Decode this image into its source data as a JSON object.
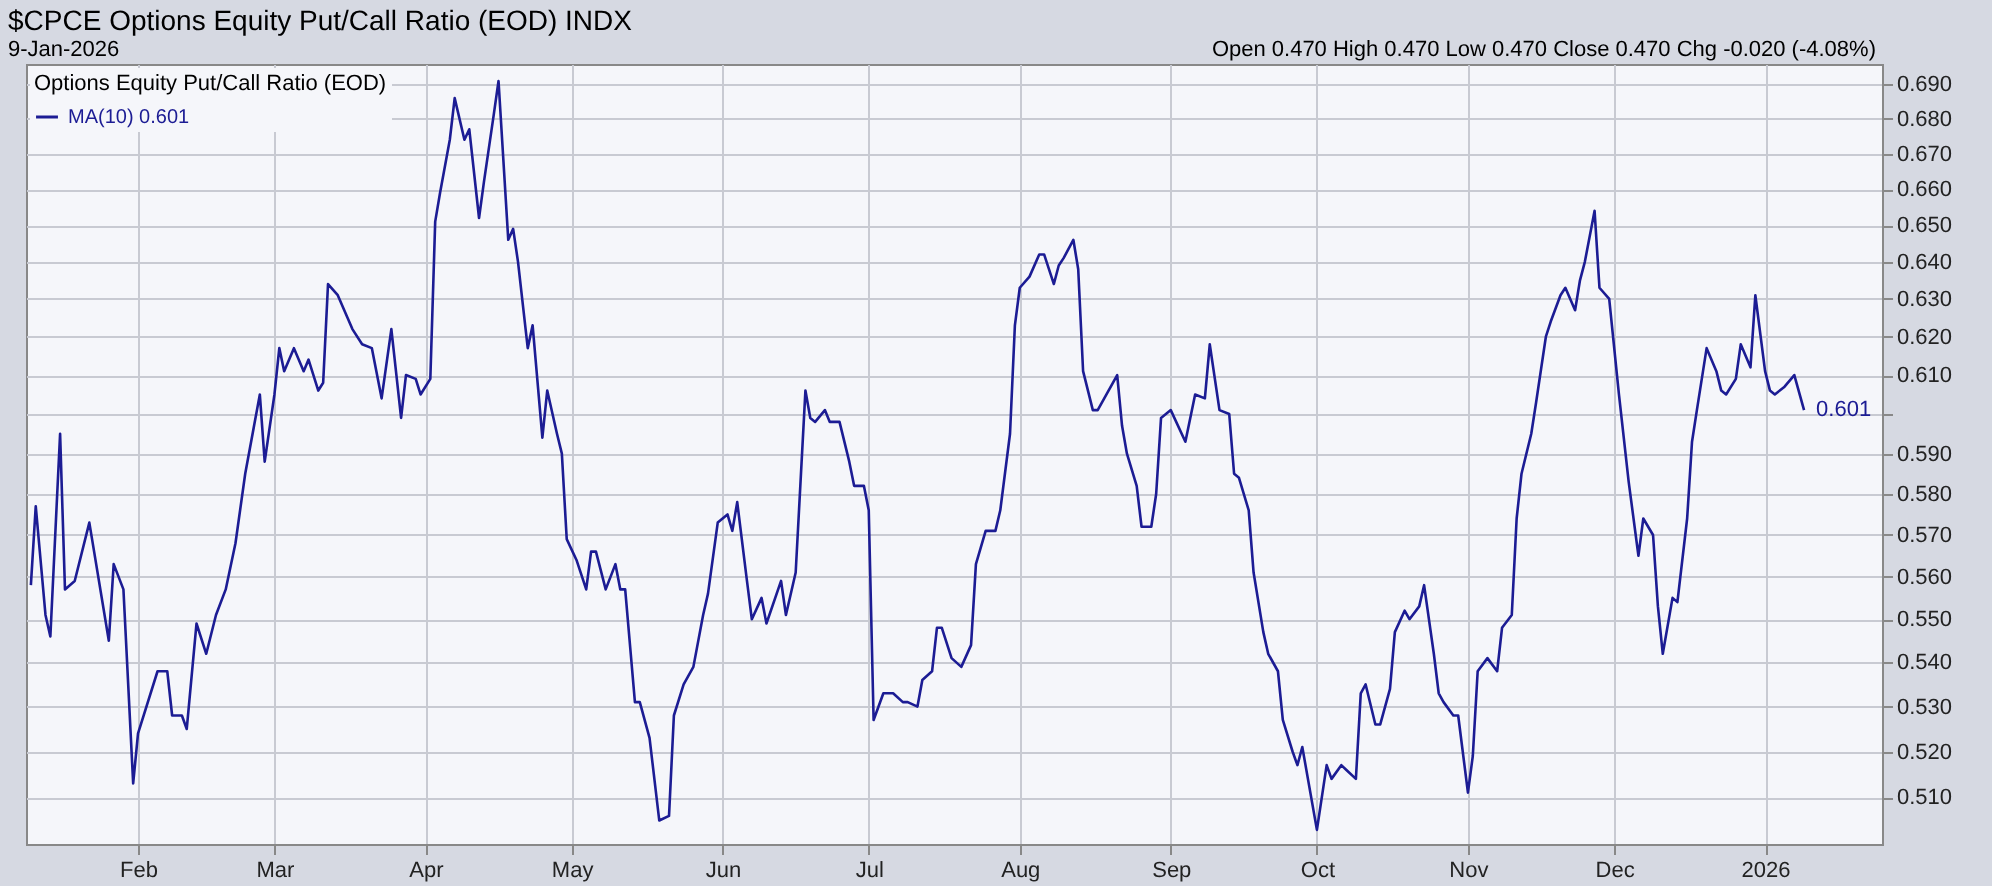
{
  "chart_data": {
    "type": "line",
    "title": "$CPCE Options Equity Put/Call Ratio (EOD) INDX",
    "subtitle": "9-Jan-2026",
    "legend_title": "Options Equity Put/Call Ratio (EOD)",
    "annotations": [
      "Open 0.470 High 0.470 Low 0.470 Close 0.470 Chg -0.020 (-4.08%)"
    ],
    "x": [
      "2025-01-10",
      "2025-01-11",
      "2025-01-13",
      "2025-01-14",
      "2025-01-16",
      "2025-01-17",
      "2025-01-19",
      "2025-01-22",
      "2025-01-26",
      "2025-01-27",
      "2025-01-29",
      "2025-01-31",
      "2025-02-01",
      "2025-02-05",
      "2025-02-07",
      "2025-02-08",
      "2025-02-10",
      "2025-02-11",
      "2025-02-13",
      "2025-02-15",
      "2025-02-17",
      "2025-02-19",
      "2025-02-21",
      "2025-02-23",
      "2025-02-26",
      "2025-02-27",
      "2025-03-01",
      "2025-03-02",
      "2025-03-03",
      "2025-03-05",
      "2025-03-07",
      "2025-03-08",
      "2025-03-10",
      "2025-03-11",
      "2025-03-12",
      "2025-03-14",
      "2025-03-16",
      "2025-03-17",
      "2025-03-19",
      "2025-03-21",
      "2025-03-23",
      "2025-03-25",
      "2025-03-27",
      "2025-03-28",
      "2025-03-30",
      "2025-03-31",
      "2025-04-02",
      "2025-04-03",
      "2025-04-04",
      "2025-04-06",
      "2025-04-07",
      "2025-04-09",
      "2025-04-10",
      "2025-04-12",
      "2025-04-13",
      "2025-04-15",
      "2025-04-16",
      "2025-04-18",
      "2025-04-19",
      "2025-04-20",
      "2025-04-22",
      "2025-04-23",
      "2025-04-25",
      "2025-04-26",
      "2025-04-28",
      "2025-04-29",
      "2025-04-30",
      "2025-05-02",
      "2025-05-04",
      "2025-05-05",
      "2025-05-06",
      "2025-05-08",
      "2025-05-10",
      "2025-05-11",
      "2025-05-12",
      "2025-05-14",
      "2025-05-15",
      "2025-05-17",
      "2025-05-19",
      "2025-05-21",
      "2025-05-22",
      "2025-05-24",
      "2025-05-26",
      "2025-05-28",
      "2025-05-29",
      "2025-05-31",
      "2025-06-02",
      "2025-06-03",
      "2025-06-04",
      "2025-06-06",
      "2025-06-07",
      "2025-06-09",
      "2025-06-10",
      "2025-06-13",
      "2025-06-14",
      "2025-06-16",
      "2025-06-18",
      "2025-06-19",
      "2025-06-20",
      "2025-06-22",
      "2025-06-23",
      "2025-06-25",
      "2025-06-27",
      "2025-06-28",
      "2025-06-30",
      "2025-07-01",
      "2025-07-02",
      "2025-07-04",
      "2025-07-06",
      "2025-07-08",
      "2025-07-09",
      "2025-07-11",
      "2025-07-12",
      "2025-07-14",
      "2025-07-15",
      "2025-07-16",
      "2025-07-18",
      "2025-07-20",
      "2025-07-22",
      "2025-07-23",
      "2025-07-25",
      "2025-07-27",
      "2025-07-28",
      "2025-07-30",
      "2025-07-31",
      "2025-08-01",
      "2025-08-03",
      "2025-08-05",
      "2025-08-06",
      "2025-08-08",
      "2025-08-09",
      "2025-08-10",
      "2025-08-12",
      "2025-08-13",
      "2025-08-14",
      "2025-08-16",
      "2025-08-17",
      "2025-08-21",
      "2025-08-22",
      "2025-08-23",
      "2025-08-25",
      "2025-08-26",
      "2025-08-28",
      "2025-08-29",
      "2025-08-30",
      "2025-09-01",
      "2025-09-04",
      "2025-09-06",
      "2025-09-08",
      "2025-09-09",
      "2025-09-11",
      "2025-09-13",
      "2025-09-14",
      "2025-09-15",
      "2025-09-17",
      "2025-09-18",
      "2025-09-20",
      "2025-09-21",
      "2025-09-23",
      "2025-09-24",
      "2025-09-26",
      "2025-09-27",
      "2025-09-28",
      "2025-10-01",
      "2025-10-03",
      "2025-10-04",
      "2025-10-06",
      "2025-10-07",
      "2025-10-09",
      "2025-10-10",
      "2025-10-11",
      "2025-10-13",
      "2025-10-14",
      "2025-10-16",
      "2025-10-17",
      "2025-10-19",
      "2025-10-20",
      "2025-10-22",
      "2025-10-23",
      "2025-10-25",
      "2025-10-26",
      "2025-10-27",
      "2025-10-29",
      "2025-10-30",
      "2025-11-01",
      "2025-11-02",
      "2025-11-03",
      "2025-11-05",
      "2025-11-07",
      "2025-11-08",
      "2025-11-10",
      "2025-11-11",
      "2025-11-12",
      "2025-11-14",
      "2025-11-15",
      "2025-11-17",
      "2025-11-18",
      "2025-11-20",
      "2025-11-21",
      "2025-11-23",
      "2025-11-24",
      "2025-11-25",
      "2025-11-27",
      "2025-11-28",
      "2025-11-30",
      "2025-12-02",
      "2025-12-04",
      "2025-12-06",
      "2025-12-07",
      "2025-12-09",
      "2025-12-10",
      "2025-12-11",
      "2025-12-13",
      "2025-12-14",
      "2025-12-16",
      "2025-12-17",
      "2025-12-18",
      "2025-12-20",
      "2025-12-22",
      "2025-12-23",
      "2025-12-24",
      "2025-12-26",
      "2025-12-27",
      "2025-12-29",
      "2025-12-30",
      "2026-01-01",
      "2026-01-02",
      "2026-01-03",
      "2026-01-05",
      "2026-01-07",
      "2026-01-09"
    ],
    "series": [
      {
        "name": "MA(10) 0.601",
        "color": "#1c1c94",
        "values": [
          0.558,
          0.577,
          0.551,
          0.546,
          0.595,
          0.557,
          0.559,
          0.573,
          0.545,
          0.563,
          0.557,
          0.513,
          0.524,
          0.538,
          0.538,
          0.528,
          0.528,
          0.525,
          0.549,
          0.542,
          0.551,
          0.557,
          0.568,
          0.585,
          0.605,
          0.588,
          0.605,
          0.617,
          0.611,
          0.617,
          0.611,
          0.614,
          0.606,
          0.608,
          0.634,
          0.631,
          0.625,
          0.622,
          0.618,
          0.617,
          0.604,
          0.622,
          0.599,
          0.61,
          0.609,
          0.605,
          0.609,
          0.651,
          0.659,
          0.674,
          0.686,
          0.674,
          0.677,
          0.652,
          0.662,
          0.681,
          0.691,
          0.646,
          0.649,
          0.64,
          0.617,
          0.623,
          0.594,
          0.606,
          0.595,
          0.59,
          0.569,
          0.564,
          0.557,
          0.566,
          0.566,
          0.557,
          0.563,
          0.557,
          0.557,
          0.531,
          0.531,
          0.523,
          0.505,
          0.506,
          0.528,
          0.535,
          0.539,
          0.551,
          0.556,
          0.573,
          0.575,
          0.571,
          0.578,
          0.559,
          0.55,
          0.555,
          0.549,
          0.559,
          0.551,
          0.561,
          0.606,
          0.599,
          0.598,
          0.601,
          0.598,
          0.598,
          0.588,
          0.582,
          0.582,
          0.576,
          0.527,
          0.533,
          0.533,
          0.531,
          0.531,
          0.53,
          0.536,
          0.538,
          0.548,
          0.548,
          0.541,
          0.539,
          0.544,
          0.563,
          0.571,
          0.571,
          0.576,
          0.595,
          0.623,
          0.633,
          0.636,
          0.642,
          0.642,
          0.634,
          0.639,
          0.641,
          0.646,
          0.638,
          0.611,
          0.601,
          0.601,
          0.61,
          0.597,
          0.59,
          0.582,
          0.572,
          0.572,
          0.58,
          0.599,
          0.601,
          0.593,
          0.605,
          0.604,
          0.618,
          0.601,
          0.6,
          0.585,
          0.584,
          0.576,
          0.561,
          0.547,
          0.542,
          0.538,
          0.527,
          0.52,
          0.517,
          0.521,
          0.503,
          0.517,
          0.514,
          0.517,
          0.516,
          0.514,
          0.533,
          0.535,
          0.526,
          0.526,
          0.534,
          0.547,
          0.552,
          0.55,
          0.553,
          0.558,
          0.542,
          0.533,
          0.531,
          0.528,
          0.528,
          0.511,
          0.519,
          0.538,
          0.541,
          0.538,
          0.548,
          0.551,
          0.574,
          0.585,
          0.595,
          0.603,
          0.62,
          0.624,
          0.631,
          0.633,
          0.627,
          0.635,
          0.64,
          0.654,
          0.633,
          0.63,
          0.605,
          0.583,
          0.565,
          0.574,
          0.57,
          0.553,
          0.542,
          0.555,
          0.554,
          0.574,
          0.593,
          0.601,
          0.617,
          0.611,
          0.606,
          0.605,
          0.609,
          0.618,
          0.612,
          0.631,
          0.611,
          0.606,
          0.605,
          0.607,
          0.61,
          0.601
        ],
        "value_labels": [
          null,
          null,
          null,
          null,
          null,
          null,
          null,
          null,
          null,
          null,
          null,
          null,
          null,
          null,
          null,
          null,
          null,
          null,
          null,
          null,
          null,
          null,
          null,
          null,
          null,
          null,
          null,
          null,
          null,
          null,
          null,
          null,
          null,
          null,
          null,
          null,
          null,
          null,
          null,
          null,
          null,
          null,
          null,
          null,
          null,
          null,
          null,
          null,
          null,
          null,
          null,
          null,
          null,
          null,
          null,
          null,
          null,
          null,
          null,
          null,
          null,
          null,
          null,
          null,
          null,
          null,
          null,
          null,
          null,
          null,
          null,
          null,
          null,
          null,
          null,
          null,
          null,
          null,
          null,
          null,
          null,
          null,
          null,
          null,
          null,
          null,
          null,
          null,
          null,
          null,
          null,
          null,
          null,
          null,
          null,
          null,
          null,
          null,
          null,
          null,
          null,
          null,
          null,
          null,
          null,
          null,
          null,
          null,
          null,
          null,
          null,
          null,
          null,
          null,
          null,
          null,
          null,
          null,
          null,
          null,
          null,
          null,
          null,
          null,
          null,
          null,
          null,
          null,
          null,
          null,
          null,
          null,
          null,
          null,
          null,
          null,
          null,
          null,
          null,
          null,
          null,
          null,
          null,
          null,
          null,
          null,
          null,
          null,
          null,
          null,
          null,
          null,
          null,
          null,
          null,
          null,
          null,
          null,
          null,
          null,
          null,
          null,
          null,
          null,
          null,
          null,
          null,
          null,
          null,
          null,
          null,
          null,
          null,
          null,
          null,
          null,
          null,
          null,
          null,
          null,
          null,
          null,
          null,
          null,
          null,
          null,
          null,
          null,
          null,
          null,
          null,
          null,
          null,
          null,
          null,
          null,
          null,
          null,
          null,
          null,
          null,
          null,
          null,
          null,
          null,
          null,
          null,
          null,
          null,
          null,
          null,
          null,
          null,
          null,
          null,
          null,
          null,
          null,
          null,
          null,
          null,
          null,
          null,
          null,
          null,
          null,
          null,
          null,
          null,
          null,
          "0.601"
        ]
      }
    ],
    "xlim": [
      "2025-01-09",
      "2026-01-25"
    ],
    "xticks": [
      {
        "value": "2025-02-01",
        "label": "Feb"
      },
      {
        "value": "2025-03-01",
        "label": "Mar"
      },
      {
        "value": "2025-04-01",
        "label": "Apr"
      },
      {
        "value": "2025-05-01",
        "label": "May"
      },
      {
        "value": "2025-06-01",
        "label": "Jun"
      },
      {
        "value": "2025-07-01",
        "label": "Jul"
      },
      {
        "value": "2025-08-01",
        "label": "Aug"
      },
      {
        "value": "2025-09-01",
        "label": "Sep"
      },
      {
        "value": "2025-10-01",
        "label": "Oct"
      },
      {
        "value": "2025-11-01",
        "label": "Nov"
      },
      {
        "value": "2025-12-01",
        "label": "Dec"
      },
      {
        "value": "2026-01-01",
        "label": "2026"
      }
    ],
    "ylim": [
      0.5,
      0.696
    ],
    "yticks": [
      {
        "value": 0.51,
        "label": "0.510"
      },
      {
        "value": 0.52,
        "label": "0.520"
      },
      {
        "value": 0.53,
        "label": "0.530"
      },
      {
        "value": 0.54,
        "label": "0.540"
      },
      {
        "value": 0.55,
        "label": "0.550"
      },
      {
        "value": 0.56,
        "label": "0.560"
      },
      {
        "value": 0.57,
        "label": "0.570"
      },
      {
        "value": 0.58,
        "label": "0.580"
      },
      {
        "value": 0.59,
        "label": "0.590"
      },
      {
        "value": 0.6,
        "label": null
      },
      {
        "value": 0.61,
        "label": "0.610"
      },
      {
        "value": 0.62,
        "label": "0.620"
      },
      {
        "value": 0.63,
        "label": "0.630"
      },
      {
        "value": 0.64,
        "label": "0.640"
      },
      {
        "value": 0.65,
        "label": "0.650"
      },
      {
        "value": 0.66,
        "label": "0.660"
      },
      {
        "value": 0.67,
        "label": "0.670"
      },
      {
        "value": 0.68,
        "label": "0.680"
      },
      {
        "value": 0.69,
        "label": "0.690"
      }
    ],
    "log": "y",
    "grid": true,
    "legend": "top left",
    "marker": "none",
    "line_style": "solid"
  }
}
